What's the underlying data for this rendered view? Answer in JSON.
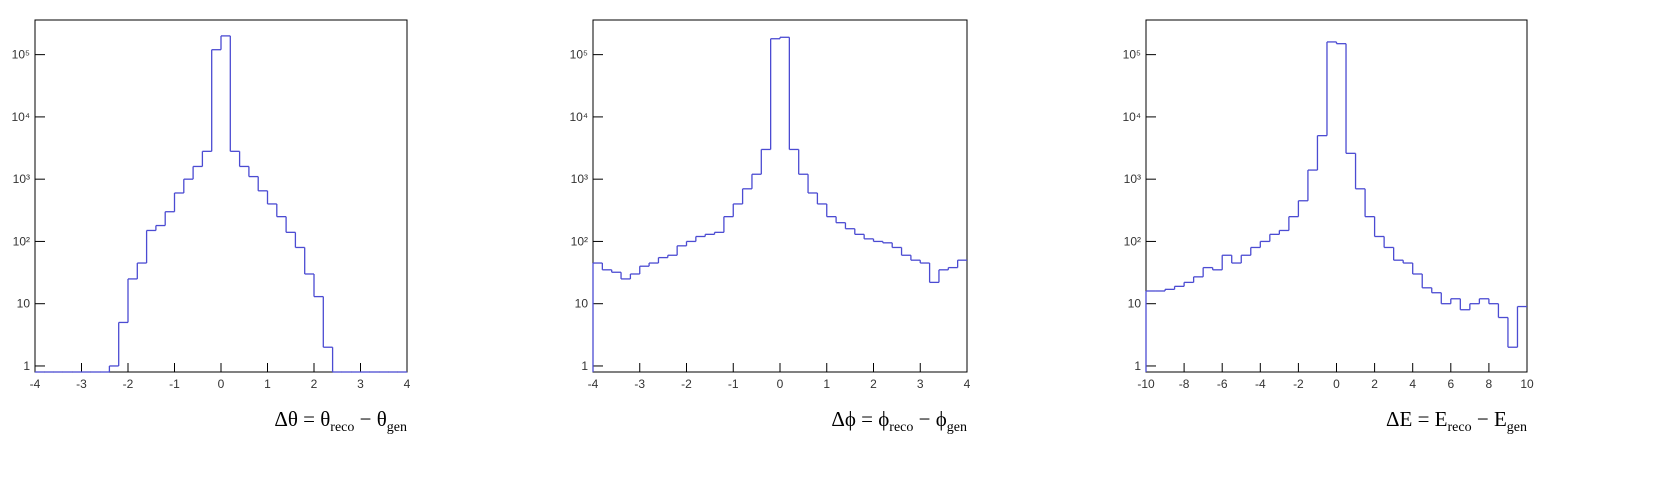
{
  "chart_data": [
    {
      "type": "histogram",
      "color": "#4b4bd2",
      "ylog": true,
      "xlim": [
        -4,
        4
      ],
      "ylim": [
        0.8,
        360000
      ],
      "xticks": [
        -4,
        -3,
        -2,
        -1,
        0,
        1,
        2,
        3,
        4
      ],
      "yticks": [
        1,
        10,
        {
          "value": 100,
          "label": "10²"
        },
        {
          "value": 1000,
          "label": "10³"
        },
        {
          "value": 10000,
          "label": "10⁴"
        },
        {
          "value": 100000,
          "label": "10⁵"
        }
      ],
      "xlabel": [
        "Δθ = θ",
        "reco",
        " − θ",
        "gen"
      ],
      "bins": [
        -4,
        -3.8,
        -3.6,
        -3.4,
        -3.2,
        -3,
        -2.8,
        -2.6,
        -2.4,
        -2.2,
        -2,
        -1.8,
        -1.6,
        -1.4,
        -1.2,
        -1,
        -0.8,
        -0.6,
        -0.4,
        -0.2,
        0,
        0.2,
        0.4,
        0.6,
        0.8,
        1,
        1.2,
        1.4,
        1.6,
        1.8,
        2,
        2.2,
        2.4,
        2.6,
        2.8,
        3,
        3.2,
        3.4,
        3.6,
        3.8,
        4
      ],
      "values": [
        0,
        0,
        0,
        0,
        0,
        0,
        0,
        0,
        1,
        5,
        25,
        45,
        150,
        180,
        300,
        600,
        1000,
        1600,
        2800,
        120000,
        200000,
        2800,
        1600,
        1100,
        650,
        400,
        250,
        140,
        80,
        30,
        13,
        2,
        0,
        0,
        0,
        0,
        0,
        0,
        0,
        0
      ]
    },
    {
      "type": "histogram",
      "color": "#4b4bd2",
      "ylog": true,
      "xlim": [
        -4,
        4
      ],
      "ylim": [
        0.8,
        360000
      ],
      "xticks": [
        -4,
        -3,
        -2,
        -1,
        0,
        1,
        2,
        3,
        4
      ],
      "yticks": [
        1,
        10,
        {
          "value": 100,
          "label": "10²"
        },
        {
          "value": 1000,
          "label": "10³"
        },
        {
          "value": 10000,
          "label": "10⁴"
        },
        {
          "value": 100000,
          "label": "10⁵"
        }
      ],
      "xlabel": [
        "Δϕ = ϕ",
        "reco",
        " − ϕ",
        "gen"
      ],
      "bins": [
        -4,
        -3.8,
        -3.6,
        -3.4,
        -3.2,
        -3,
        -2.8,
        -2.6,
        -2.4,
        -2.2,
        -2,
        -1.8,
        -1.6,
        -1.4,
        -1.2,
        -1,
        -0.8,
        -0.6,
        -0.4,
        -0.2,
        0,
        0.2,
        0.4,
        0.6,
        0.8,
        1,
        1.2,
        1.4,
        1.6,
        1.8,
        2,
        2.2,
        2.4,
        2.6,
        2.8,
        3,
        3.2,
        3.4,
        3.6,
        3.8,
        4
      ],
      "values": [
        45,
        35,
        32,
        25,
        30,
        40,
        45,
        55,
        60,
        85,
        100,
        120,
        130,
        140,
        250,
        400,
        700,
        1200,
        3000,
        180000,
        190000,
        3000,
        1200,
        600,
        400,
        250,
        200,
        160,
        130,
        110,
        100,
        95,
        80,
        60,
        50,
        45,
        22,
        35,
        38,
        50
      ]
    },
    {
      "type": "histogram",
      "color": "#4b4bd2",
      "ylog": true,
      "xlim": [
        -10,
        10
      ],
      "ylim": [
        0.8,
        360000
      ],
      "xticks": [
        -10,
        -8,
        -6,
        -4,
        -2,
        0,
        2,
        4,
        6,
        8,
        10
      ],
      "yticks": [
        1,
        10,
        {
          "value": 100,
          "label": "10²"
        },
        {
          "value": 1000,
          "label": "10³"
        },
        {
          "value": 10000,
          "label": "10⁴"
        },
        {
          "value": 100000,
          "label": "10⁵"
        }
      ],
      "xlabel": [
        "ΔE = E",
        "reco",
        " − E",
        "gen"
      ],
      "bins": [
        -10,
        -9.5,
        -9,
        -8.5,
        -8,
        -7.5,
        -7,
        -6.5,
        -6,
        -5.5,
        -5,
        -4.5,
        -4,
        -3.5,
        -3,
        -2.5,
        -2,
        -1.5,
        -1,
        -0.5,
        0,
        0.5,
        1,
        1.5,
        2,
        2.5,
        3,
        3.5,
        4,
        4.5,
        5,
        5.5,
        6,
        6.5,
        7,
        7.5,
        8,
        8.5,
        9,
        9.5,
        10
      ],
      "values": [
        16,
        16,
        17,
        19,
        22,
        27,
        38,
        35,
        60,
        45,
        60,
        80,
        100,
        130,
        150,
        250,
        450,
        1400,
        5000,
        160000,
        150000,
        2600,
        700,
        250,
        120,
        80,
        50,
        45,
        30,
        18,
        15,
        10,
        12,
        8,
        10,
        12,
        10,
        6,
        2,
        9
      ]
    }
  ]
}
